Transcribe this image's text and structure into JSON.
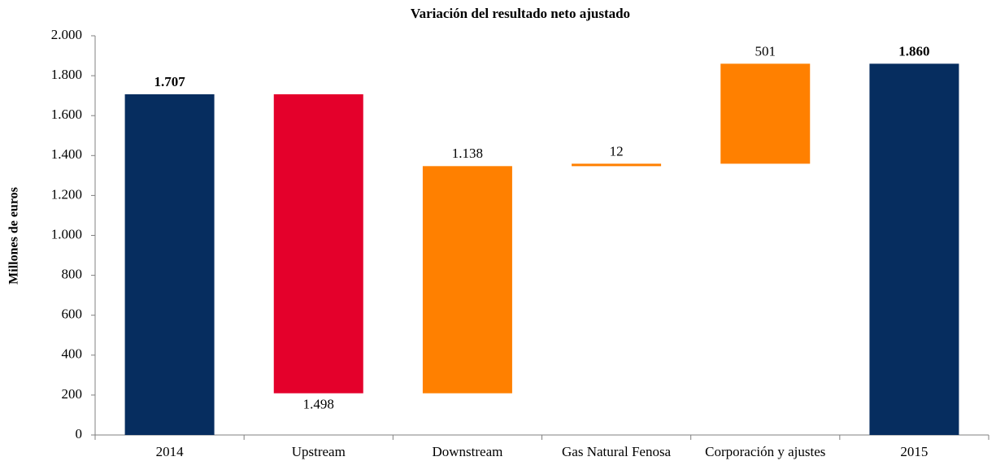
{
  "chart_data": {
    "type": "waterfall",
    "title": "Variación del resultado neto ajustado",
    "y_label": "Millones de euros",
    "categories": [
      "2014",
      "Upstream",
      "Downstream",
      "Gas Natural Fenosa",
      "Corporación y ajustes",
      "2015"
    ],
    "values": [
      1707,
      -1498,
      1138,
      12,
      501,
      1860
    ],
    "value_labels": [
      "1.707",
      "1.498",
      "1.138",
      "12",
      "501",
      "1.860"
    ],
    "is_total": [
      true,
      false,
      false,
      false,
      false,
      true
    ],
    "colors": [
      "#062d5f",
      "#e4002b",
      "#ff8000",
      "#ff8000",
      "#ff8000",
      "#062d5f"
    ],
    "ylim": [
      0,
      2000
    ],
    "yticks": [
      0,
      200,
      400,
      600,
      800,
      {
        "value": 1000,
        "label": "1.000"
      },
      {
        "value": 1200,
        "label": "1.200"
      },
      {
        "value": 1400,
        "label": "1.400"
      },
      {
        "value": 1600,
        "label": "1.600"
      },
      {
        "value": 1800,
        "label": "1.800"
      },
      {
        "value": 2000,
        "label": "2.000"
      }
    ],
    "grid": false
  }
}
